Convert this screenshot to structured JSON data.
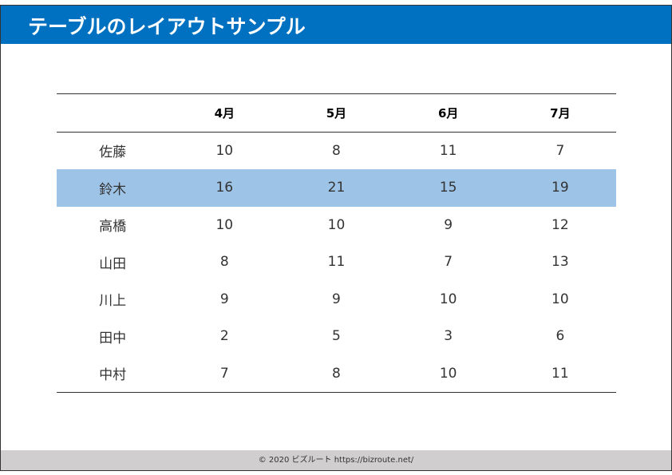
{
  "title": "テーブルのレイアウトサンプル",
  "table": {
    "headers": [
      "",
      "4月",
      "5月",
      "6月",
      "7月"
    ],
    "rows": [
      {
        "name": "佐藤",
        "values": [
          "10",
          "8",
          "11",
          "7"
        ]
      },
      {
        "name": "鈴木",
        "values": [
          "16",
          "21",
          "15",
          "19"
        ],
        "highlighted": true
      },
      {
        "name": "高橋",
        "values": [
          "10",
          "10",
          "9",
          "12"
        ]
      },
      {
        "name": "山田",
        "values": [
          "8",
          "11",
          "7",
          "13"
        ]
      },
      {
        "name": "川上",
        "values": [
          "9",
          "9",
          "10",
          "10"
        ]
      },
      {
        "name": "田中",
        "values": [
          "2",
          "5",
          "3",
          "6"
        ]
      },
      {
        "name": "中村",
        "values": [
          "7",
          "8",
          "10",
          "11"
        ]
      }
    ]
  },
  "footer": "© 2020 ビズルート https://bizroute.net/",
  "colors": {
    "header": "#0070c0",
    "highlight": "#9dc3e6",
    "footer": "#d0cece"
  }
}
